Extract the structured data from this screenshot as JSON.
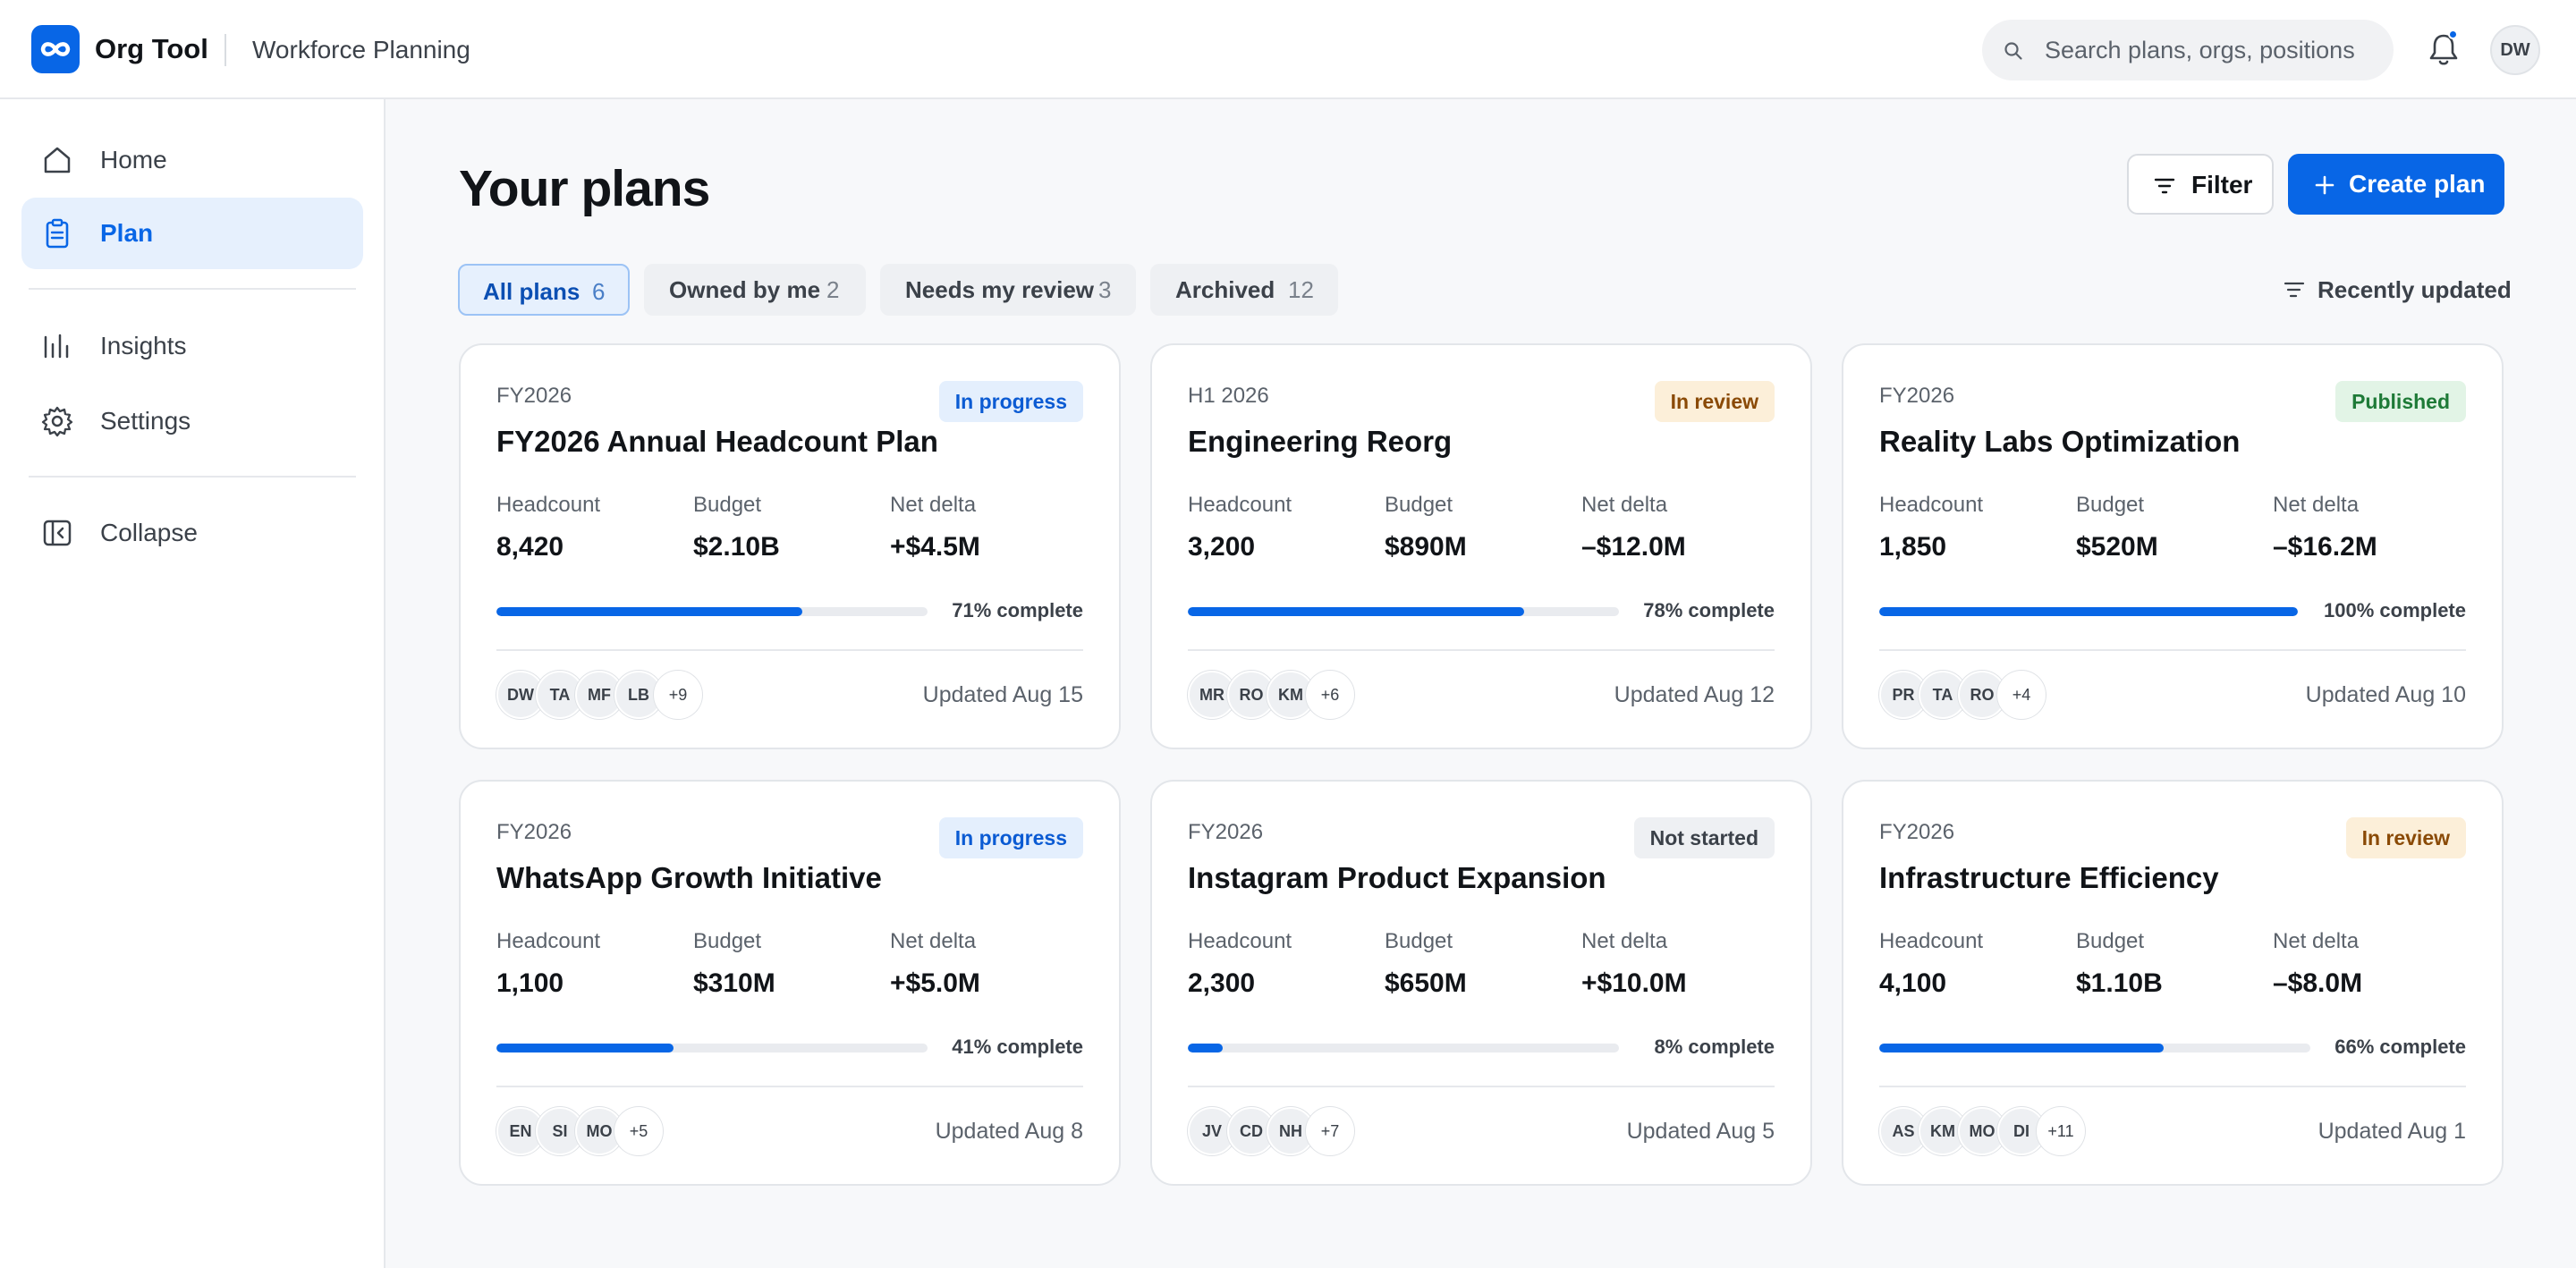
{
  "app": {
    "name": "Org Tool",
    "section": "Workforce Planning",
    "logo_glyph": "∞"
  },
  "search": {
    "placeholder": "Search plans, orgs, positions"
  },
  "user": {
    "initials": "DW"
  },
  "colors": {
    "accent": "#0866e6",
    "in_progress": "#0b5bd3",
    "in_review": "#8a4a06",
    "published": "#1e7a37",
    "not_started": "#3b4149"
  },
  "sidebar": {
    "items": [
      {
        "label": "Home",
        "icon": "home-icon",
        "active": false
      },
      {
        "label": "Plan",
        "icon": "clipboard-icon",
        "active": true
      },
      {
        "label": "Insights",
        "icon": "bar-chart-icon",
        "active": false
      },
      {
        "label": "Settings",
        "icon": "gear-icon",
        "active": false
      },
      {
        "label": "Collapse",
        "icon": "collapse-sidebar-icon",
        "active": false
      }
    ]
  },
  "page": {
    "title": "Your plans",
    "filter_label": "Filter",
    "create_label": "Create plan",
    "sort_label": "Recently updated"
  },
  "tabs": [
    {
      "label": "All plans",
      "count": "6",
      "active": true
    },
    {
      "label": "Owned by me",
      "count": "2",
      "active": false
    },
    {
      "label": "Needs my review",
      "count": "3",
      "active": false
    },
    {
      "label": "Archived",
      "count": "12",
      "active": false
    }
  ],
  "metric_labels": {
    "headcount": "Headcount",
    "budget": "Budget",
    "net_delta": "Net delta"
  },
  "plans": [
    {
      "period": "FY2026",
      "title": "FY2026 Annual Headcount Plan",
      "status": "In progress",
      "status_kind": "progress",
      "headcount": "8,420",
      "budget": "$2.10B",
      "net_delta": "+$4.5M",
      "progress": 71,
      "progress_label": "71% complete",
      "avatars": [
        "DW",
        "TA",
        "MF",
        "LB"
      ],
      "more": "+9",
      "updated": "Updated Aug 15"
    },
    {
      "period": "H1 2026",
      "title": "Engineering Reorg",
      "status": "In review",
      "status_kind": "review",
      "headcount": "3,200",
      "budget": "$890M",
      "net_delta": "–$12.0M",
      "progress": 78,
      "progress_label": "78% complete",
      "avatars": [
        "MR",
        "RO",
        "KM"
      ],
      "more": "+6",
      "updated": "Updated Aug 12"
    },
    {
      "period": "FY2026",
      "title": "Reality Labs Optimization",
      "status": "Published",
      "status_kind": "published",
      "headcount": "1,850",
      "budget": "$520M",
      "net_delta": "–$16.2M",
      "progress": 100,
      "progress_label": "100% complete",
      "avatars": [
        "PR",
        "TA",
        "RO"
      ],
      "more": "+4",
      "updated": "Updated Aug 10"
    },
    {
      "period": "FY2026",
      "title": "WhatsApp Growth Initiative",
      "status": "In progress",
      "status_kind": "progress",
      "headcount": "1,100",
      "budget": "$310M",
      "net_delta": "+$5.0M",
      "progress": 41,
      "progress_label": "41% complete",
      "avatars": [
        "EN",
        "SI",
        "MO"
      ],
      "more": "+5",
      "updated": "Updated Aug 8"
    },
    {
      "period": "FY2026",
      "title": "Instagram Product Expansion",
      "status": "Not started",
      "status_kind": "notstarted",
      "headcount": "2,300",
      "budget": "$650M",
      "net_delta": "+$10.0M",
      "progress": 8,
      "progress_label": "8% complete",
      "avatars": [
        "JV",
        "CD",
        "NH"
      ],
      "more": "+7",
      "updated": "Updated Aug 5"
    },
    {
      "period": "FY2026",
      "title": "Infrastructure Efficiency",
      "status": "In review",
      "status_kind": "review",
      "headcount": "4,100",
      "budget": "$1.10B",
      "net_delta": "–$8.0M",
      "progress": 66,
      "progress_label": "66% complete",
      "avatars": [
        "AS",
        "KM",
        "MO",
        "DI"
      ],
      "more": "+11",
      "updated": "Updated Aug 1"
    }
  ]
}
